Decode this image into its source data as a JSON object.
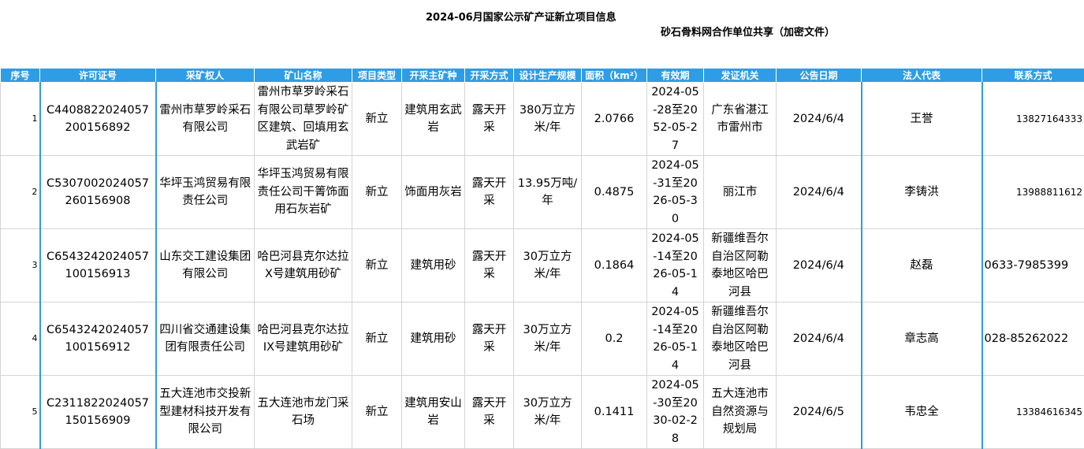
{
  "header": {
    "title": "2024-06月国家公示矿产证新立项目信息",
    "subtitle": "砂石骨料网合作单位共享（加密文件）"
  },
  "table": {
    "columns": [
      "序号",
      "许可证号",
      "采矿权人",
      "矿山名称",
      "项目类型",
      "开采主矿种",
      "开采方式",
      "设计生产规模",
      "面积（km²）",
      "有效期",
      "发证机关",
      "公告日期",
      "法人代表",
      "联系方式"
    ],
    "rows": [
      {
        "no": "1",
        "license": "C4408822024057200156892",
        "holder": "雷州市草罗岭采石有限公司",
        "mine": "雷州市草罗岭采石有限公司草罗岭矿区建筑、回填用玄武岩矿",
        "type": "新立",
        "mineral": "建筑用玄武岩",
        "method": "露天开采",
        "scale": "380万立方米/年",
        "area": "2.0766",
        "validity": "2024-05-28至2052-05-27",
        "authority": "广东省湛江市雷州市",
        "date": "2024/6/4",
        "rep": "王誉",
        "contact": "13827164333"
      },
      {
        "no": "2",
        "license": "C5307002024057260156908",
        "holder": "华坪玉鸿贸易有限责任公司",
        "mine": "华坪玉鸿贸易有限责任公司干箐饰面用石灰岩矿",
        "type": "新立",
        "mineral": "饰面用灰岩",
        "method": "露天开采",
        "scale": "13.95万吨/年",
        "area": "0.4875",
        "validity": "2024-05-31至2026-05-30",
        "authority": "丽江市",
        "date": "2024/6/4",
        "rep": "李铸洪",
        "contact": "13988811612"
      },
      {
        "no": "3",
        "license": "C6543242024057100156913",
        "holder": "山东交工建设集团有限公司",
        "mine": "哈巴河县克尔达拉X号建筑用砂矿",
        "type": "新立",
        "mineral": "建筑用砂",
        "method": "露天开采",
        "scale": "30万立方米/年",
        "area": "0.1864",
        "validity": "2024-05-14至2026-05-14",
        "authority": "新疆维吾尔自治区阿勒泰地区哈巴河县",
        "date": "2024/6/4",
        "rep": "赵磊",
        "contact": "0633-7985399"
      },
      {
        "no": "4",
        "license": "C6543242024057100156912",
        "holder": "四川省交通建设集团有限责任公司",
        "mine": "哈巴河县克尔达拉IX号建筑用砂矿",
        "type": "新立",
        "mineral": "建筑用砂",
        "method": "露天开采",
        "scale": "30万立方米/年",
        "area": "0.2",
        "validity": "2024-05-14至2026-05-14",
        "authority": "新疆维吾尔自治区阿勒泰地区哈巴河县",
        "date": "2024/6/4",
        "rep": "章志高",
        "contact": "028-85262022"
      },
      {
        "no": "5",
        "license": "C2311822024057150156909",
        "holder": "五大连池市交投新型建材科技开发有限公司",
        "mine": "五大连池市龙门采石场",
        "type": "新立",
        "mineral": "建筑用安山岩",
        "method": "露天开采",
        "scale": "30万立方米/年",
        "area": "0.1411",
        "validity": "2024-05-30至2030-02-28",
        "authority": "五大连池市自然资源与规划局",
        "date": "2024/6/5",
        "rep": "韦忠全",
        "contact": "13384616345"
      }
    ]
  }
}
